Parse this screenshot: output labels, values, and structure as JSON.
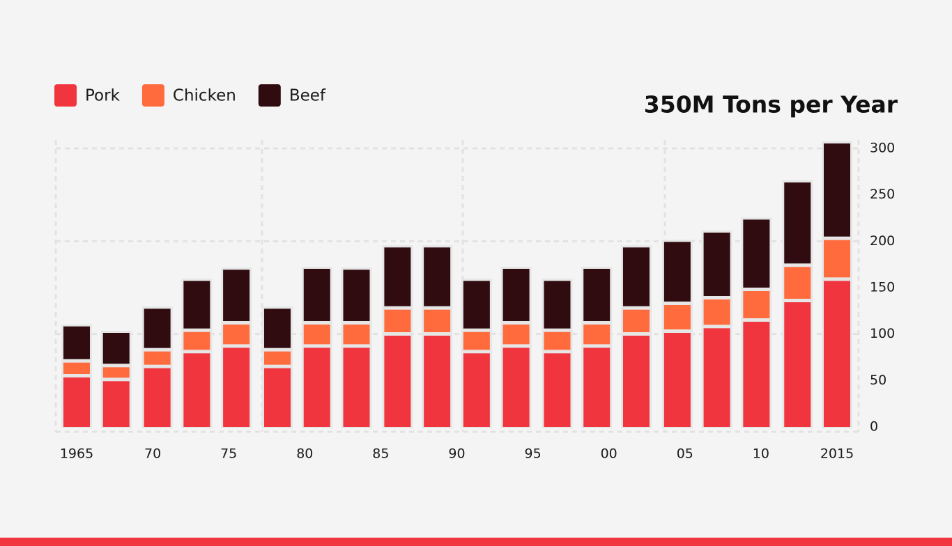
{
  "chart_data": {
    "type": "stacked_bar",
    "title": "350M Tons per Year",
    "x": [
      1965,
      1967.6,
      1970.3,
      1972.9,
      1975.5,
      1978.2,
      1980.8,
      1983.4,
      1986.1,
      1988.7,
      1991.3,
      1993.9,
      1996.6,
      1999.2,
      2001.8,
      2004.5,
      2007.1,
      2009.7,
      2012.4,
      2015
    ],
    "xlim": [
      1965,
      2015
    ],
    "xticks": [
      1965,
      {
        "value": 1970,
        "label": "70"
      },
      {
        "value": 1975,
        "label": "75"
      },
      {
        "value": 1980,
        "label": "80"
      },
      {
        "value": 1985,
        "label": "85"
      },
      {
        "value": 1990,
        "label": "90"
      },
      {
        "value": 1995,
        "label": "95"
      },
      {
        "value": 2000,
        "label": "00"
      },
      {
        "value": 2005,
        "label": "05"
      },
      {
        "value": 2010,
        "label": "10"
      },
      2015
    ],
    "ylim": [
      0,
      300
    ],
    "yticks": [
      0,
      50,
      100,
      150,
      200,
      250,
      300
    ],
    "grid": true,
    "series": [
      {
        "name": "Pork",
        "color": "#f0353f",
        "values": [
          54,
          50,
          64,
          80,
          86,
          64,
          86,
          86,
          99,
          99,
          80,
          86,
          80,
          86,
          99,
          102,
          107,
          114,
          135,
          158
        ]
      },
      {
        "name": "Chicken",
        "color": "#ff6b3d",
        "values": [
          16,
          15,
          18,
          23,
          25,
          18,
          25,
          25,
          28,
          28,
          23,
          25,
          23,
          25,
          28,
          30,
          31,
          33,
          38,
          44
        ]
      },
      {
        "name": "Beef",
        "color": "#300c10",
        "values": [
          39,
          37,
          46,
          55,
          59,
          46,
          60,
          59,
          67,
          67,
          55,
          60,
          55,
          60,
          67,
          68,
          72,
          77,
          91,
          104
        ]
      }
    ]
  }
}
